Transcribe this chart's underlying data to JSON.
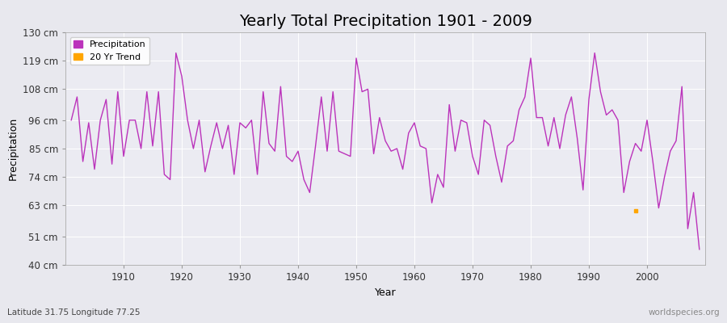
{
  "title": "Yearly Total Precipitation 1901 - 2009",
  "xlabel": "Year",
  "ylabel": "Precipitation",
  "lat_lon_label": "Latitude 31.75 Longitude 77.25",
  "watermark": "worldspecies.org",
  "bg_color": "#e8e8ee",
  "plot_bg_color": "#ebebf2",
  "line_color": "#bb33bb",
  "trend_color": "#ffa500",
  "ylim": [
    40,
    130
  ],
  "ytick_labels": [
    "40 cm",
    "51 cm",
    "63 cm",
    "74 cm",
    "85 cm",
    "96 cm",
    "108 cm",
    "119 cm",
    "130 cm"
  ],
  "ytick_values": [
    40,
    51,
    63,
    74,
    85,
    96,
    108,
    119,
    130
  ],
  "years": [
    1901,
    1902,
    1903,
    1904,
    1905,
    1906,
    1907,
    1908,
    1909,
    1910,
    1911,
    1912,
    1913,
    1914,
    1915,
    1916,
    1917,
    1918,
    1919,
    1920,
    1921,
    1922,
    1923,
    1924,
    1925,
    1926,
    1927,
    1928,
    1929,
    1930,
    1931,
    1932,
    1933,
    1934,
    1935,
    1936,
    1937,
    1938,
    1939,
    1940,
    1941,
    1942,
    1943,
    1944,
    1945,
    1946,
    1947,
    1948,
    1949,
    1950,
    1951,
    1952,
    1953,
    1954,
    1955,
    1956,
    1957,
    1958,
    1959,
    1960,
    1961,
    1962,
    1963,
    1964,
    1965,
    1966,
    1967,
    1968,
    1969,
    1970,
    1971,
    1972,
    1973,
    1974,
    1975,
    1976,
    1977,
    1978,
    1979,
    1980,
    1981,
    1982,
    1983,
    1984,
    1985,
    1986,
    1987,
    1988,
    1989,
    1990,
    1991,
    1992,
    1993,
    1994,
    1995,
    1996,
    1997,
    1998,
    1999,
    2000,
    2001,
    2002,
    2003,
    2004,
    2005,
    2006,
    2007,
    2008,
    2009
  ],
  "precip": [
    96,
    105,
    80,
    95,
    77,
    96,
    104,
    79,
    107,
    82,
    96,
    96,
    85,
    107,
    86,
    107,
    75,
    73,
    122,
    113,
    96,
    85,
    96,
    76,
    86,
    95,
    85,
    94,
    75,
    95,
    93,
    96,
    75,
    107,
    87,
    84,
    109,
    82,
    80,
    84,
    73,
    68,
    86,
    105,
    84,
    107,
    84,
    83,
    82,
    120,
    107,
    108,
    83,
    97,
    88,
    84,
    85,
    77,
    91,
    95,
    86,
    85,
    64,
    75,
    70,
    102,
    84,
    96,
    95,
    82,
    75,
    96,
    94,
    82,
    72,
    86,
    88,
    100,
    105,
    120,
    97,
    97,
    86,
    97,
    85,
    98,
    105,
    89,
    69,
    104,
    122,
    107,
    98,
    100,
    96,
    68,
    80,
    87,
    84,
    96,
    80,
    62,
    74,
    84,
    88,
    109,
    54,
    68,
    46
  ],
  "trend_year": 1998,
  "trend_value": 61,
  "xlim": [
    1900,
    2010
  ],
  "xticks": [
    1910,
    1920,
    1930,
    1940,
    1950,
    1960,
    1970,
    1980,
    1990,
    2000
  ],
  "title_fontsize": 14,
  "axis_fontsize": 9,
  "tick_fontsize": 8.5,
  "legend_fontsize": 8,
  "line_width": 1.0
}
